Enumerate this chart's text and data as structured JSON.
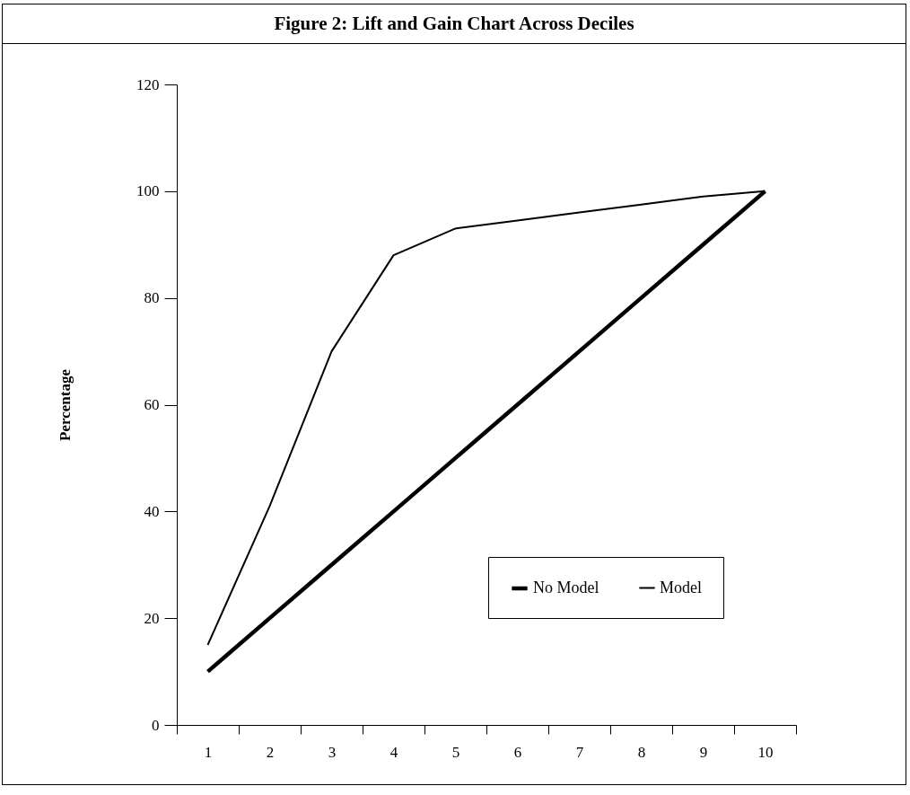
{
  "chart_data": {
    "type": "line",
    "title": "Figure 2: Lift and Gain Chart Across Deciles",
    "ylabel": "Percentage",
    "categories": [
      "1",
      "2",
      "3",
      "4",
      "5",
      "6",
      "7",
      "8",
      "9",
      "10"
    ],
    "series": [
      {
        "name": "No Model",
        "color": "#000000",
        "values": [
          10,
          20,
          30,
          40,
          50,
          60,
          70,
          80,
          90,
          100
        ]
      },
      {
        "name": "Model",
        "color": "#000000",
        "values": [
          15,
          41,
          70,
          88,
          93,
          94.5,
          96,
          97.5,
          99,
          100
        ]
      }
    ],
    "ylim": [
      0,
      120
    ],
    "yticks": [
      0,
      20,
      40,
      60,
      80,
      100,
      120
    ],
    "legend": "bottom right"
  }
}
